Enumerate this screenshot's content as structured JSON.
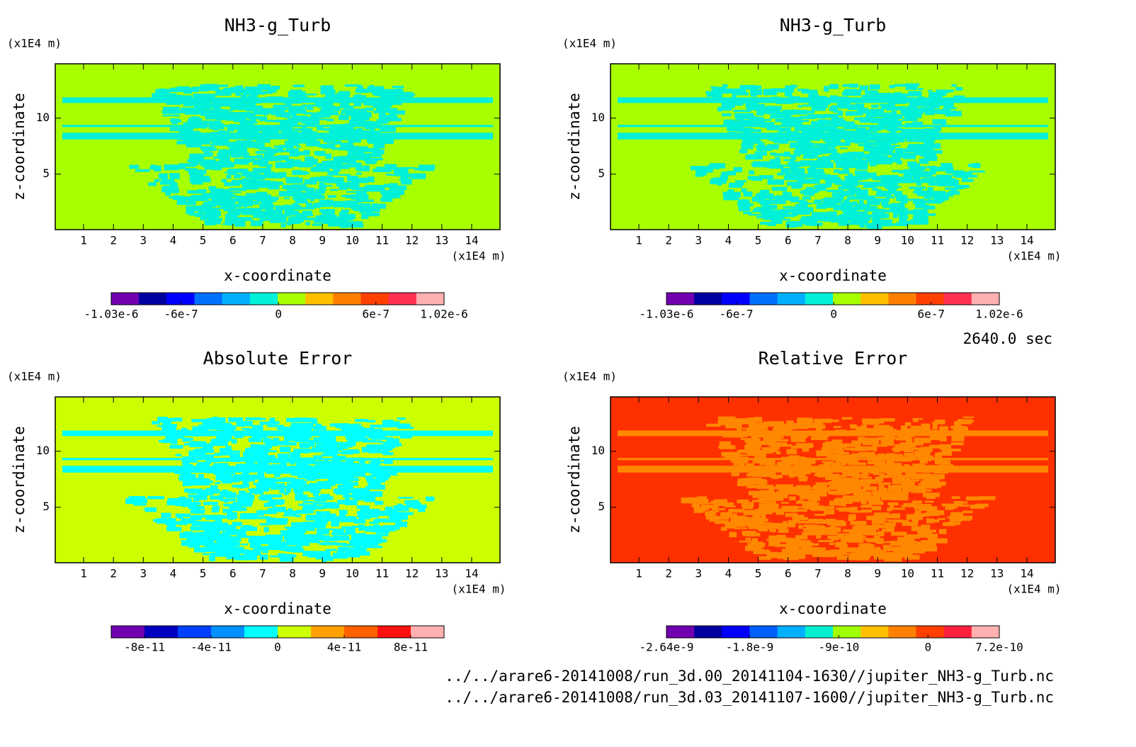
{
  "chart_data": [
    {
      "type": "contour",
      "title": "NH3-g_Turb",
      "x_label": "x-coordinate",
      "y_label": "z-coordinate",
      "x_unit": "(x1E4 m)",
      "y_unit": "(x1E4 m)",
      "xlim": [
        0.05,
        14.95
      ],
      "xticks": [
        1,
        2,
        3,
        4,
        5,
        6,
        7,
        8,
        9,
        10,
        11,
        12,
        13,
        14
      ],
      "ylim": [
        0.05,
        14.85
      ],
      "yticks": [
        5,
        10
      ],
      "field_color": "#a8ff00",
      "pattern_color": "#00f0d8",
      "clim": [
        -1.03e-06,
        1.02e-06
      ],
      "colorbar_ticks": [
        {
          "value": -1.03e-06,
          "label": "-1.03e-6"
        },
        -6e-07,
        0,
        6e-07,
        {
          "value": 1.02e-06,
          "label": "1.02e-6"
        }
      ],
      "colorbar_colors": [
        "#7000b0",
        "#0000a0",
        "#0000ff",
        "#0070ff",
        "#00b0ff",
        "#00f0d8",
        "#a8ff00",
        "#ffc000",
        "#ff8000",
        "#ff4000",
        "#ff3050",
        "#ffb0b0"
      ]
    },
    {
      "type": "contour",
      "title": "NH3-g_Turb",
      "x_label": "x-coordinate",
      "y_label": "z-coordinate",
      "x_unit": "(x1E4 m)",
      "y_unit": "(x1E4 m)",
      "xlim": [
        0.05,
        14.95
      ],
      "xticks": [
        1,
        2,
        3,
        4,
        5,
        6,
        7,
        8,
        9,
        10,
        11,
        12,
        13,
        14
      ],
      "ylim": [
        0.05,
        14.85
      ],
      "yticks": [
        5,
        10
      ],
      "field_color": "#a8ff00",
      "pattern_color": "#00f0d8",
      "clim": [
        -1.03e-06,
        1.02e-06
      ],
      "colorbar_ticks": [
        {
          "value": -1.03e-06,
          "label": "-1.03e-6"
        },
        -6e-07,
        0,
        6e-07,
        {
          "value": 1.02e-06,
          "label": "1.02e-6"
        }
      ],
      "colorbar_colors": [
        "#7000b0",
        "#0000a0",
        "#0000ff",
        "#0070ff",
        "#00b0ff",
        "#00f0d8",
        "#a8ff00",
        "#ffc000",
        "#ff8000",
        "#ff4000",
        "#ff3050",
        "#ffb0b0"
      ]
    },
    {
      "type": "contour",
      "title": "Absolute Error",
      "x_label": "x-coordinate",
      "y_label": "z-coordinate",
      "x_unit": "(x1E4 m)",
      "y_unit": "(x1E4 m)",
      "xlim": [
        0.05,
        14.95
      ],
      "xticks": [
        1,
        2,
        3,
        4,
        5,
        6,
        7,
        8,
        9,
        10,
        11,
        12,
        13,
        14
      ],
      "ylim": [
        0.05,
        14.85
      ],
      "yticks": [
        5,
        10
      ],
      "field_color": "#ccff00",
      "pattern_color": "#00ffff",
      "clim": [
        -1e-10,
        1e-10
      ],
      "colorbar_ticks": [
        -8e-11,
        -4e-11,
        0,
        4e-11,
        8e-11
      ],
      "colorbar_colors": [
        "#7000b0",
        "#0000c0",
        "#0040ff",
        "#0090ff",
        "#00ffff",
        "#ccff00",
        "#ffa000",
        "#ff6000",
        "#ff1010",
        "#ffb0b0"
      ]
    },
    {
      "type": "contour",
      "title": "Relative Error",
      "x_label": "x-coordinate",
      "y_label": "z-coordinate",
      "x_unit": "(x1E4 m)",
      "y_unit": "(x1E4 m)",
      "xlim": [
        0.05,
        14.95
      ],
      "xticks": [
        1,
        2,
        3,
        4,
        5,
        6,
        7,
        8,
        9,
        10,
        11,
        12,
        13,
        14
      ],
      "ylim": [
        0.05,
        14.85
      ],
      "yticks": [
        5,
        10
      ],
      "field_color": "#ff3000",
      "pattern_color": "#ff8800",
      "clim": [
        -2.64e-09,
        7.2e-10
      ],
      "colorbar_ticks": [
        -2.64e-09,
        -1.8e-09,
        -9e-10,
        0,
        7.2e-10
      ],
      "colorbar_colors": [
        "#7000b0",
        "#0000a0",
        "#0000ff",
        "#0060ff",
        "#00b0ff",
        "#00f0d0",
        "#a0ff00",
        "#ffc000",
        "#ff8000",
        "#ff4000",
        "#ff2040",
        "#ffb0b0"
      ]
    }
  ],
  "time_label": "2640.0 sec",
  "files": [
    "../../arare6-20141008/run_3d.00_20141104-1630//jupiter_NH3-g_Turb.nc",
    "../../arare6-20141008/run_3d.03_20141107-1600//jupiter_NH3-g_Turb.nc"
  ]
}
